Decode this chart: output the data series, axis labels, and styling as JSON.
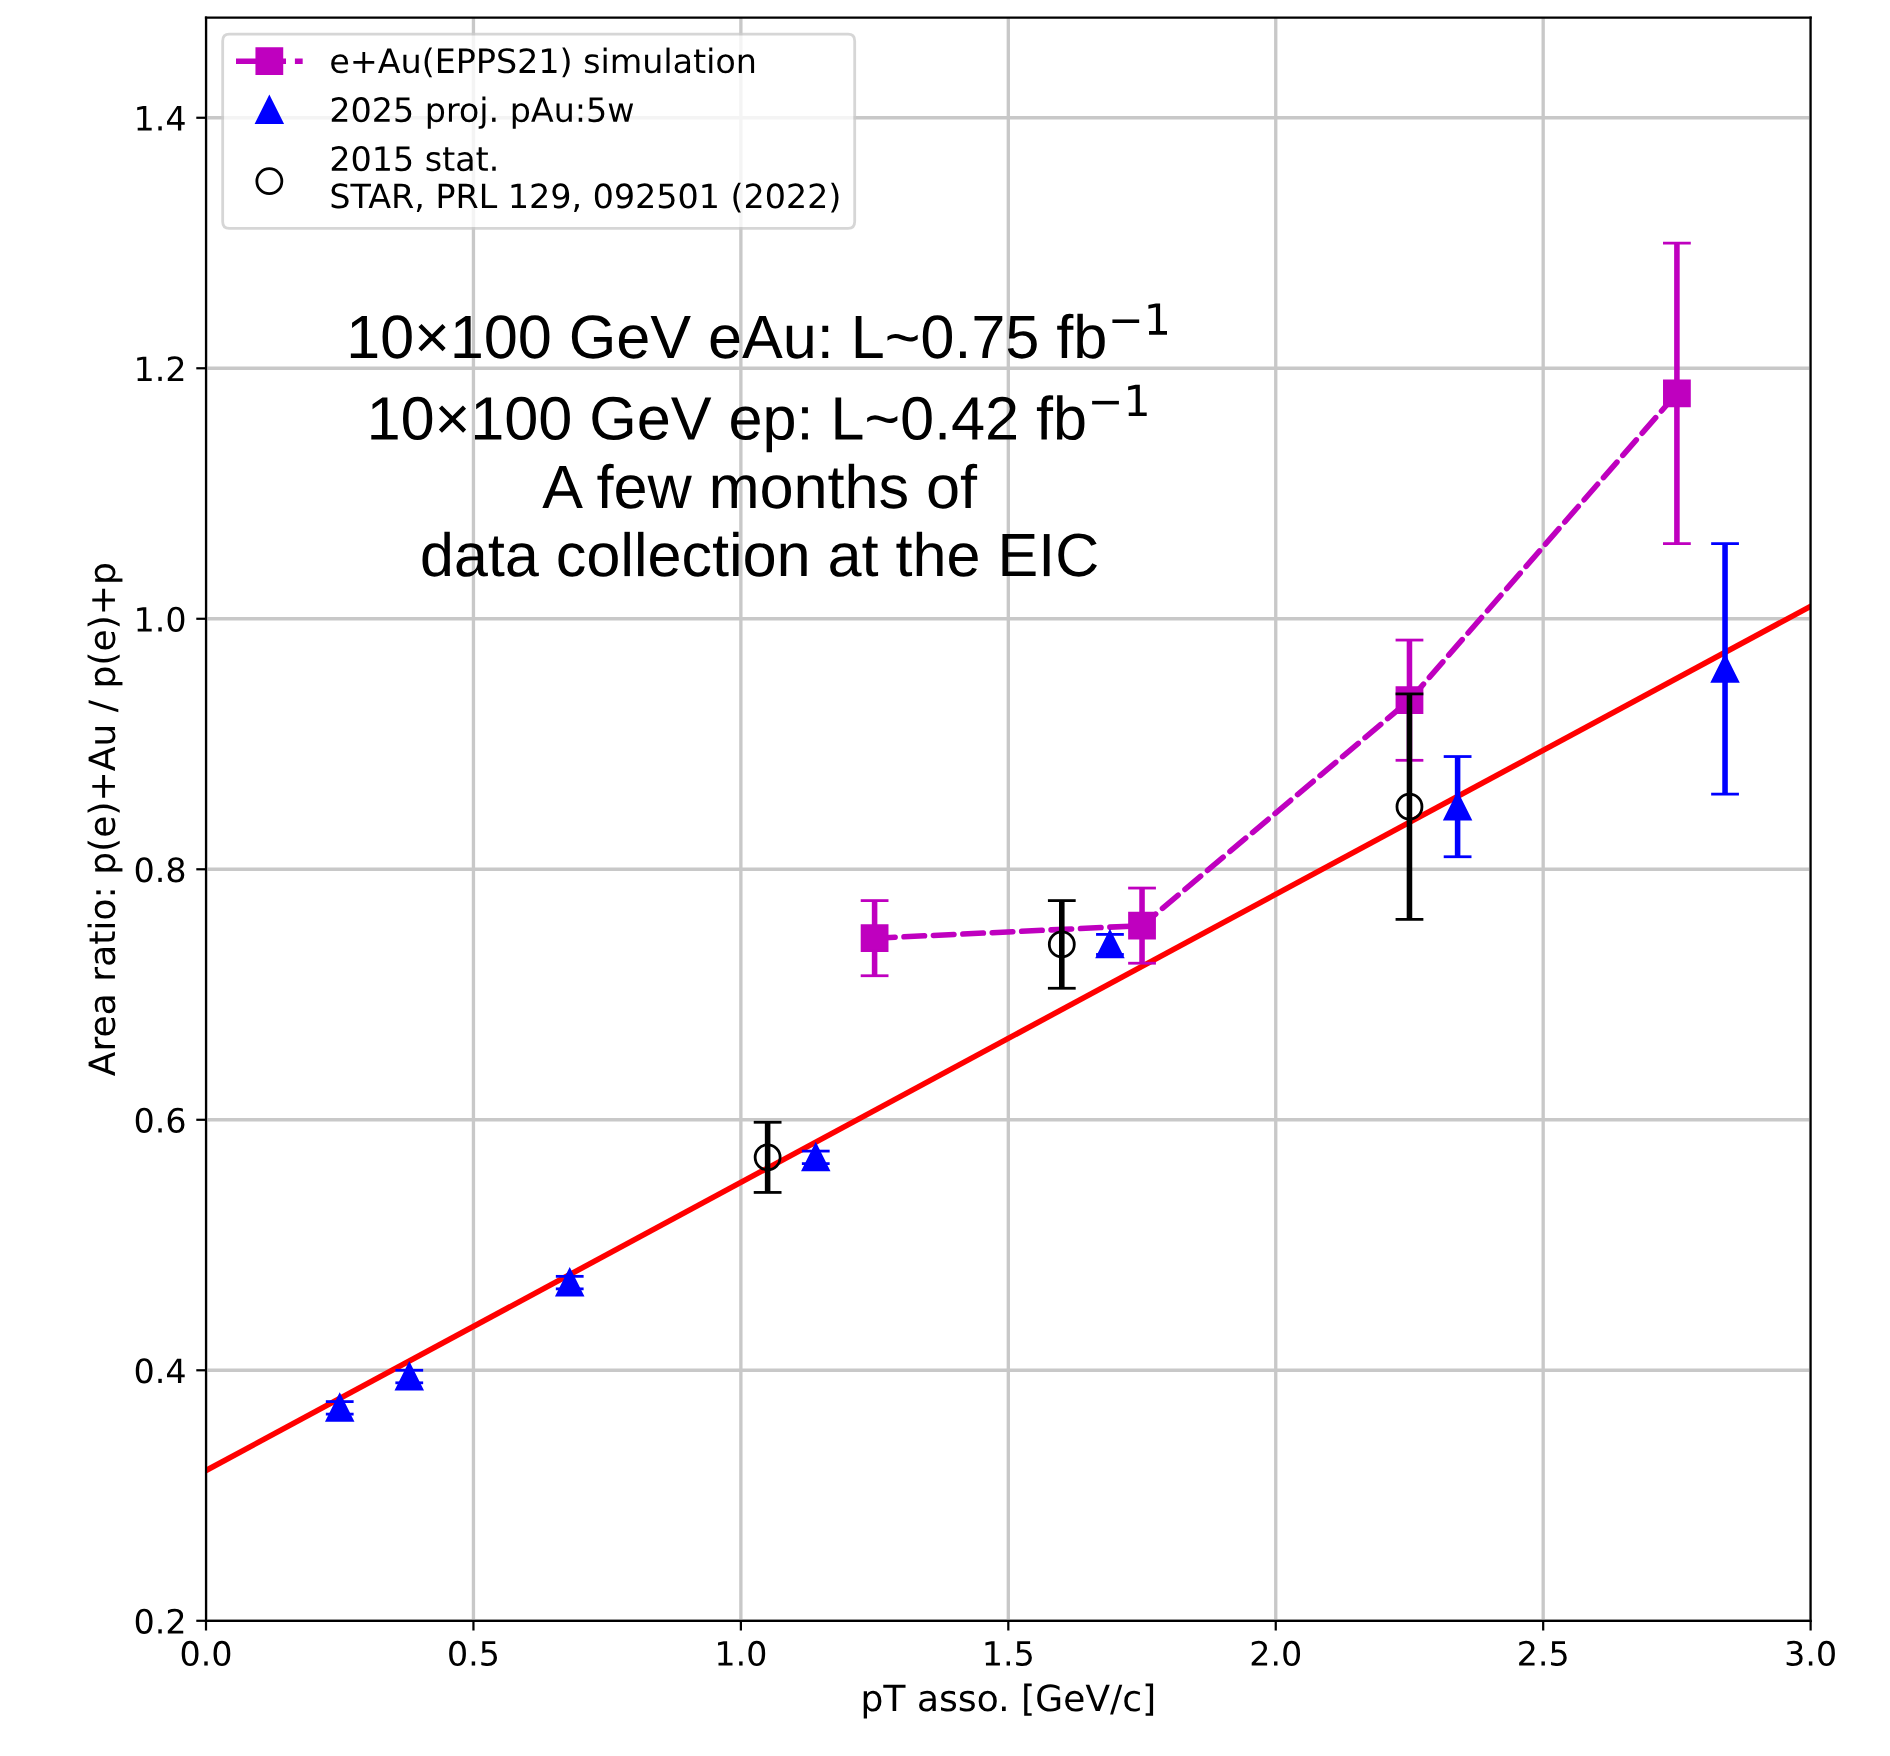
{
  "chart_data": {
    "type": "scatter",
    "xlabel": "pT asso. [GeV/c]",
    "ylabel": "Area ratio: p(e)+Au / p(e)+p",
    "xlim": [
      0.0,
      3.0
    ],
    "xticks": [
      {
        "value": 0,
        "label": "0.0"
      },
      0.5,
      {
        "value": 1,
        "label": "1.0"
      },
      1.5,
      {
        "value": 2,
        "label": "2.0"
      },
      2.5,
      {
        "value": 3,
        "label": "3.0"
      }
    ],
    "ylim": [
      0.2,
      1.48
    ],
    "yticks": [
      0.2,
      0.4,
      0.6,
      0.8,
      {
        "value": 1,
        "label": "1.0"
      },
      1.2,
      1.4
    ],
    "grid": true,
    "legend": "top left",
    "series": [
      {
        "name": "e+Au(EPPS21) simulation",
        "type": "line",
        "color": "#bf00bf",
        "marker": "square",
        "line_style": "dashed",
        "x": [
          1.25,
          1.75,
          2.25,
          2.75
        ],
        "values": [
          0.745,
          0.755,
          0.935,
          1.18
        ],
        "errors": [
          0.03,
          0.03,
          0.048,
          0.12
        ]
      },
      {
        "name": "2025 proj. pAu:5w",
        "color": "#0000ff",
        "marker": "triangle",
        "x": [
          0.25,
          0.38,
          0.68,
          1.14,
          1.69,
          2.34,
          2.84
        ],
        "values": [
          0.37,
          0.395,
          0.47,
          0.57,
          0.74,
          0.85,
          0.96
        ],
        "errors": [
          0.005,
          0.005,
          0.005,
          0.005,
          0.008,
          0.04,
          0.1
        ]
      },
      {
        "name": "2015 stat.\nSTAR, PRL 129, 092501 (2022)",
        "color": "#000000",
        "marker": "circle",
        "x": [
          1.05,
          1.6,
          2.25
        ],
        "values": [
          0.57,
          0.74,
          0.85
        ],
        "errors": [
          0.028,
          0.035,
          0.09
        ]
      },
      {
        "type": "line",
        "color": "#ff0000",
        "marker": "none",
        "line_style": "solid",
        "x": [
          0.0,
          3.0
        ],
        "values": [
          0.32,
          1.01
        ]
      }
    ],
    "annotations": [
      "10×100 GeV eAu: L~0.75 fb$^{−1}$\n10×100 GeV ep: L~0.42 fb$^{−1}$\nA few months of\ndata collection at the EIC"
    ]
  }
}
